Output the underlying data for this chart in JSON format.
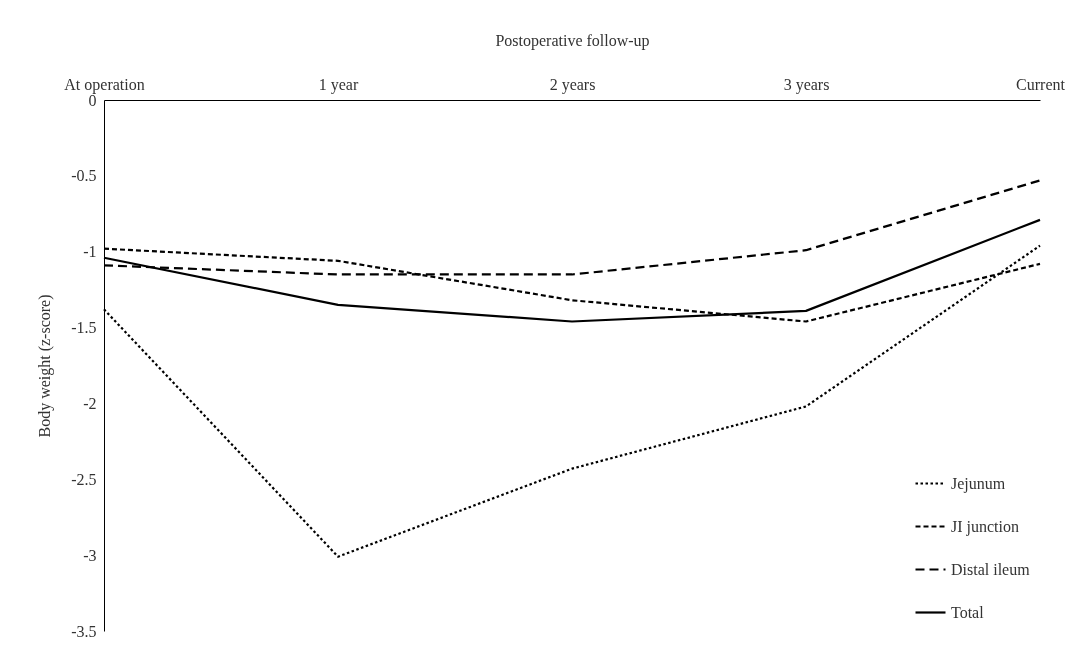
{
  "chart_data": {
    "type": "line",
    "xlabel": "Postoperative follow-up",
    "ylabel": "Body weight (z-score)",
    "categories": [
      "At operation",
      "1 year",
      "2 years",
      "3 years",
      "Current"
    ],
    "series": [
      {
        "name": "Jejunum",
        "color": "#000000",
        "line_style": "dotted",
        "values": [
          -1.38,
          -3.01,
          -2.43,
          -2.02,
          -0.96
        ]
      },
      {
        "name": "JI junction",
        "color": "#000000",
        "line_style": "dashed",
        "values": [
          -0.98,
          -1.06,
          -1.32,
          -1.46,
          -1.08
        ]
      },
      {
        "name": "Distal ileum",
        "color": "#000000",
        "line_style": "dashed",
        "values": [
          -1.09,
          -1.15,
          -1.15,
          -0.99,
          -0.53
        ]
      },
      {
        "name": "Total",
        "color": "#000000",
        "line_style": "solid",
        "values": [
          -1.04,
          -1.35,
          -1.46,
          -1.39,
          -0.79
        ]
      }
    ],
    "ylim": [
      -3.5,
      0
    ],
    "yticks": [
      0,
      -0.5,
      -1,
      -1.5,
      -2,
      -2.5,
      -3,
      -3.5
    ],
    "grid": false,
    "legend": "bottom right",
    "marker": "none"
  }
}
